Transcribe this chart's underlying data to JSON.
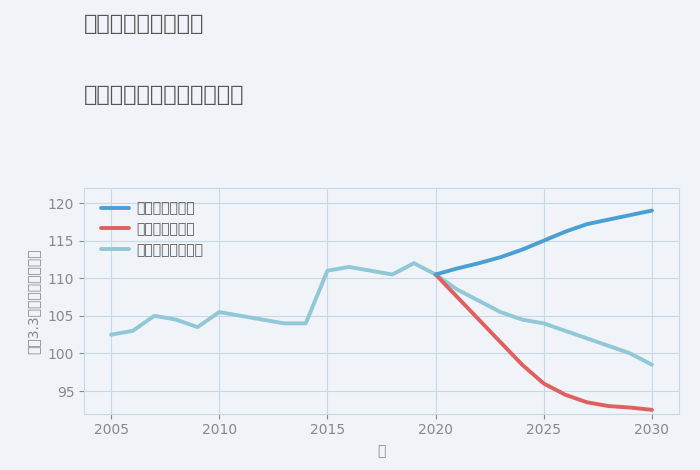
{
  "title_line1": "岐阜県関市平成通の",
  "title_line2": "中古マンションの価格推移",
  "xlabel": "年",
  "ylabel": "坪（3.3㎡）単価（万円）",
  "ylim": [
    92,
    122
  ],
  "yticks": [
    95,
    100,
    105,
    110,
    115,
    120
  ],
  "xticks": [
    2005,
    2010,
    2015,
    2020,
    2025,
    2030
  ],
  "background_color": "#f0f4f8",
  "plot_bg_color": "#f0f4f8",
  "good_scenario": {
    "label": "グッドシナリオ",
    "color": "#4a9fd4",
    "linewidth": 2.8,
    "x": [
      2020,
      2021,
      2022,
      2023,
      2024,
      2025,
      2026,
      2027,
      2028,
      2029,
      2030
    ],
    "y": [
      110.5,
      111.3,
      112.0,
      112.8,
      113.8,
      115.0,
      116.2,
      117.2,
      117.8,
      118.4,
      119.0
    ]
  },
  "bad_scenario": {
    "label": "バッドシナリオ",
    "color": "#e06060",
    "linewidth": 2.8,
    "x": [
      2020,
      2021,
      2022,
      2023,
      2024,
      2025,
      2026,
      2027,
      2028,
      2029,
      2030
    ],
    "y": [
      110.5,
      107.5,
      104.5,
      101.5,
      98.5,
      96.0,
      94.5,
      93.5,
      93.0,
      92.8,
      92.5
    ]
  },
  "normal_scenario": {
    "label": "ノーマルシナリオ",
    "color": "#90c8d8",
    "linewidth": 2.8,
    "x": [
      2005,
      2006,
      2007,
      2008,
      2009,
      2010,
      2011,
      2012,
      2013,
      2014,
      2015,
      2016,
      2017,
      2018,
      2019,
      2020,
      2021,
      2022,
      2023,
      2024,
      2025,
      2026,
      2027,
      2028,
      2029,
      2030
    ],
    "y": [
      102.5,
      103.0,
      105.0,
      104.5,
      103.5,
      105.5,
      105.0,
      104.5,
      104.0,
      104.0,
      111.0,
      111.5,
      111.0,
      110.5,
      112.0,
      110.5,
      108.5,
      107.0,
      105.5,
      104.5,
      104.0,
      103.0,
      102.0,
      101.0,
      100.0,
      98.5
    ]
  },
  "grid_color": "#c8d8e8",
  "title_color": "#555555",
  "axis_color": "#888888",
  "tick_color": "#888888",
  "legend_text_color": "#555555",
  "title_fontsize": 16,
  "axis_label_fontsize": 10,
  "tick_fontsize": 10,
  "legend_fontsize": 10
}
